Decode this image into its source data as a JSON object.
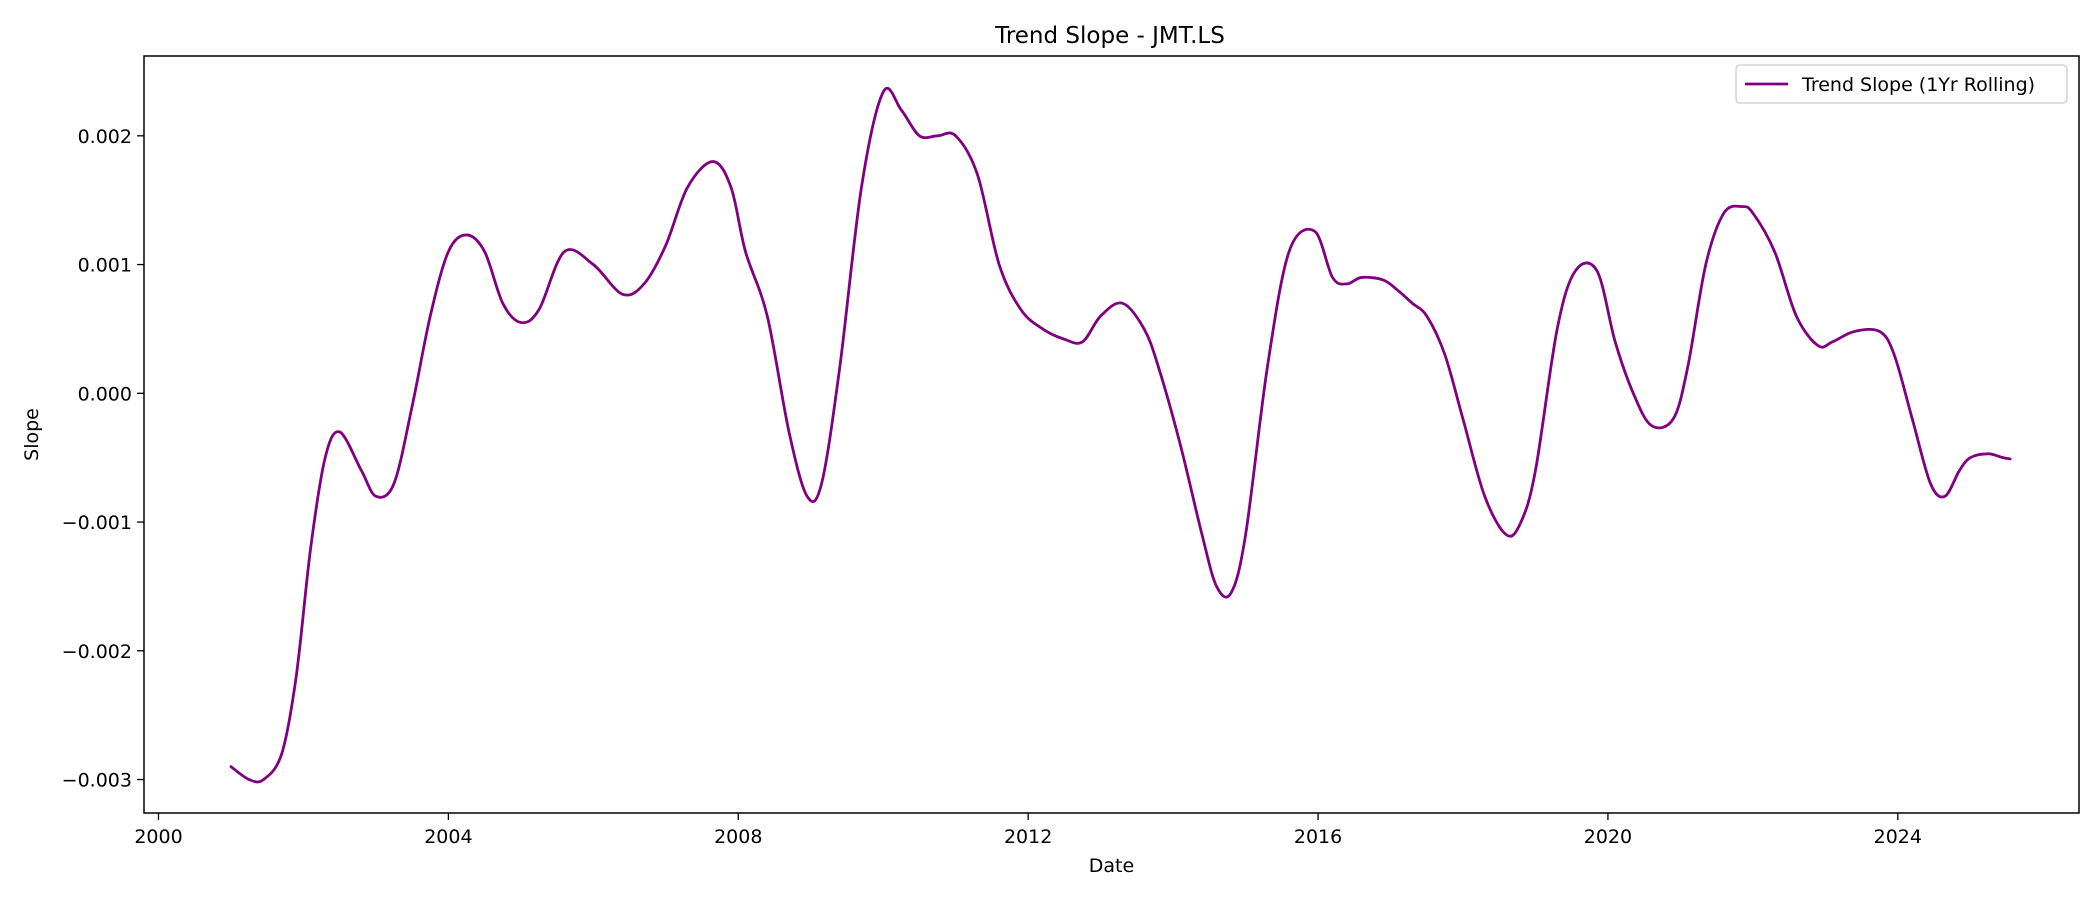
{
  "chart_data": {
    "type": "line",
    "title": "Trend Slope - JMT.LS",
    "xlabel": "Date",
    "ylabel": "Slope",
    "xlim": [
      1999.8,
      2026.5
    ],
    "ylim": [
      -0.00326,
      0.00262
    ],
    "x_ticks": [
      {
        "value": 2000,
        "label": "2000"
      },
      {
        "value": 2004,
        "label": "2004"
      },
      {
        "value": 2008,
        "label": "2008"
      },
      {
        "value": 2012,
        "label": "2012"
      },
      {
        "value": 2016,
        "label": "2016"
      },
      {
        "value": 2020,
        "label": "2020"
      },
      {
        "value": 2024,
        "label": "2024"
      }
    ],
    "y_ticks": [
      {
        "value": 0.002,
        "label": "0.002"
      },
      {
        "value": 0.001,
        "label": "0.001"
      },
      {
        "value": 0.0,
        "label": "0.000"
      },
      {
        "value": -0.001,
        "label": "−0.001"
      },
      {
        "value": -0.002,
        "label": "−0.002"
      },
      {
        "value": -0.003,
        "label": "−0.003"
      }
    ],
    "grid": false,
    "legend_position": "top-right",
    "series": [
      {
        "name": "Trend Slope (1Yr Rolling)",
        "color": "#800080",
        "x": [
          2001.0,
          2001.25,
          2001.45,
          2001.7,
          2001.9,
          2002.1,
          2002.3,
          2002.5,
          2002.8,
          2003.0,
          2003.25,
          2003.5,
          2003.75,
          2004.0,
          2004.25,
          2004.5,
          2004.75,
          2005.0,
          2005.25,
          2005.6,
          2006.0,
          2006.4,
          2006.7,
          2007.0,
          2007.3,
          2007.65,
          2007.9,
          2008.1,
          2008.4,
          2008.7,
          2008.95,
          2009.15,
          2009.4,
          2009.7,
          2010.0,
          2010.25,
          2010.5,
          2010.75,
          2011.0,
          2011.3,
          2011.6,
          2011.9,
          2012.2,
          2012.5,
          2012.75,
          2013.0,
          2013.3,
          2013.6,
          2013.8,
          2014.1,
          2014.4,
          2014.6,
          2014.8,
          2015.0,
          2015.3,
          2015.6,
          2015.95,
          2016.2,
          2016.4,
          2016.6,
          2016.9,
          2017.1,
          2017.3,
          2017.5,
          2017.75,
          2018.0,
          2018.3,
          2018.6,
          2018.8,
          2019.0,
          2019.3,
          2019.55,
          2019.85,
          2020.1,
          2020.35,
          2020.6,
          2020.9,
          2021.1,
          2021.35,
          2021.6,
          2021.85,
          2022.0,
          2022.3,
          2022.6,
          2022.9,
          2023.1,
          2023.4,
          2023.75,
          2023.95,
          2024.2,
          2024.45,
          2024.65,
          2024.85,
          2025.0,
          2025.25,
          2025.45,
          2025.55
        ],
        "values": [
          -0.0029,
          -0.003,
          -0.003,
          -0.0028,
          -0.0022,
          -0.0012,
          -0.0005,
          -0.0003,
          -0.0006,
          -0.0008,
          -0.0007,
          -0.0001,
          0.0006,
          0.0011,
          0.00123,
          0.0011,
          0.0007,
          0.00055,
          0.00065,
          0.0011,
          0.001,
          0.00077,
          0.00085,
          0.00115,
          0.0016,
          0.0018,
          0.0016,
          0.0011,
          0.0006,
          -0.0003,
          -0.0008,
          -0.0007,
          0.0002,
          0.0016,
          0.00234,
          0.0022,
          0.002,
          0.002,
          0.002,
          0.0017,
          0.001,
          0.00065,
          0.0005,
          0.00042,
          0.0004,
          0.0006,
          0.0007,
          0.0005,
          0.0002,
          -0.0004,
          -0.0011,
          -0.0015,
          -0.00155,
          -0.0011,
          0.0002,
          0.0011,
          0.00126,
          0.0009,
          0.00085,
          0.0009,
          0.00088,
          0.0008,
          0.0007,
          0.0006,
          0.0003,
          -0.0002,
          -0.0008,
          -0.0011,
          -0.001,
          -0.0006,
          0.0005,
          0.00095,
          0.00095,
          0.0004,
          0.0,
          -0.00025,
          -0.0002,
          0.0002,
          0.001,
          0.0014,
          0.00145,
          0.0014,
          0.0011,
          0.0006,
          0.00037,
          0.0004,
          0.00048,
          0.00048,
          0.0003,
          -0.0002,
          -0.0007,
          -0.0008,
          -0.0006,
          -0.0005,
          -0.00047,
          -0.0005,
          -0.00051
        ]
      }
    ]
  }
}
